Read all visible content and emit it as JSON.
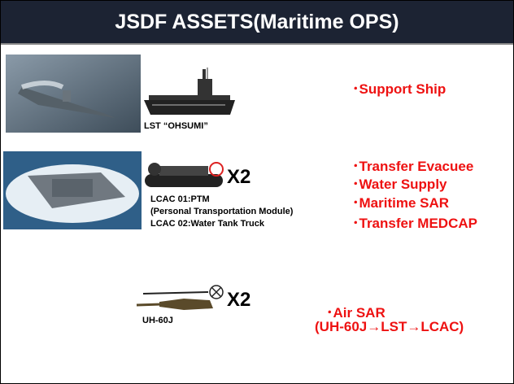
{
  "header": {
    "title": "JSDF ASSETS(Maritime OPS)"
  },
  "assets": [
    {
      "labels": [
        "LST “OHSUMI”"
      ],
      "roles": [
        "･Support Ship"
      ]
    },
    {
      "labels": [
        "LCAC 01:PTM",
        "(Personal Transportation Module)",
        "LCAC 02:Water Tank Truck"
      ],
      "multiplier": "X2",
      "roles": [
        "･Transfer Evacuee",
        "･Water Supply",
        "･Maritime SAR",
        "･Transfer MEDCAP"
      ]
    },
    {
      "labels": [
        "UH-60J"
      ],
      "multiplier": "X2",
      "roles": [
        "･Air SAR",
        "(UH-60J→LST→LCAC)"
      ]
    }
  ]
}
